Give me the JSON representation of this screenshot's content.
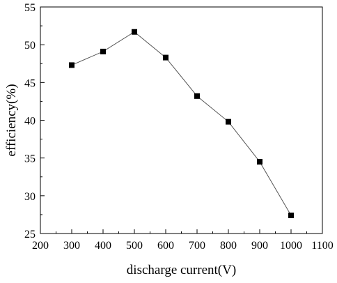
{
  "chart_data": {
    "type": "line",
    "xlabel": "discharge current(V)",
    "ylabel": "efficiency(%)",
    "xlim": [
      200,
      1100
    ],
    "ylim": [
      25,
      55
    ],
    "xticks": [
      200,
      300,
      400,
      500,
      600,
      700,
      800,
      900,
      1000,
      1100
    ],
    "yticks": [
      25,
      30,
      35,
      40,
      45,
      50,
      55
    ],
    "grid": false,
    "marker": "square",
    "series": [
      {
        "x": [
          300,
          400,
          500,
          600,
          700,
          800,
          900,
          1000
        ],
        "y": [
          47.3,
          49.1,
          51.7,
          48.3,
          43.2,
          39.8,
          34.5,
          27.4
        ]
      }
    ]
  }
}
